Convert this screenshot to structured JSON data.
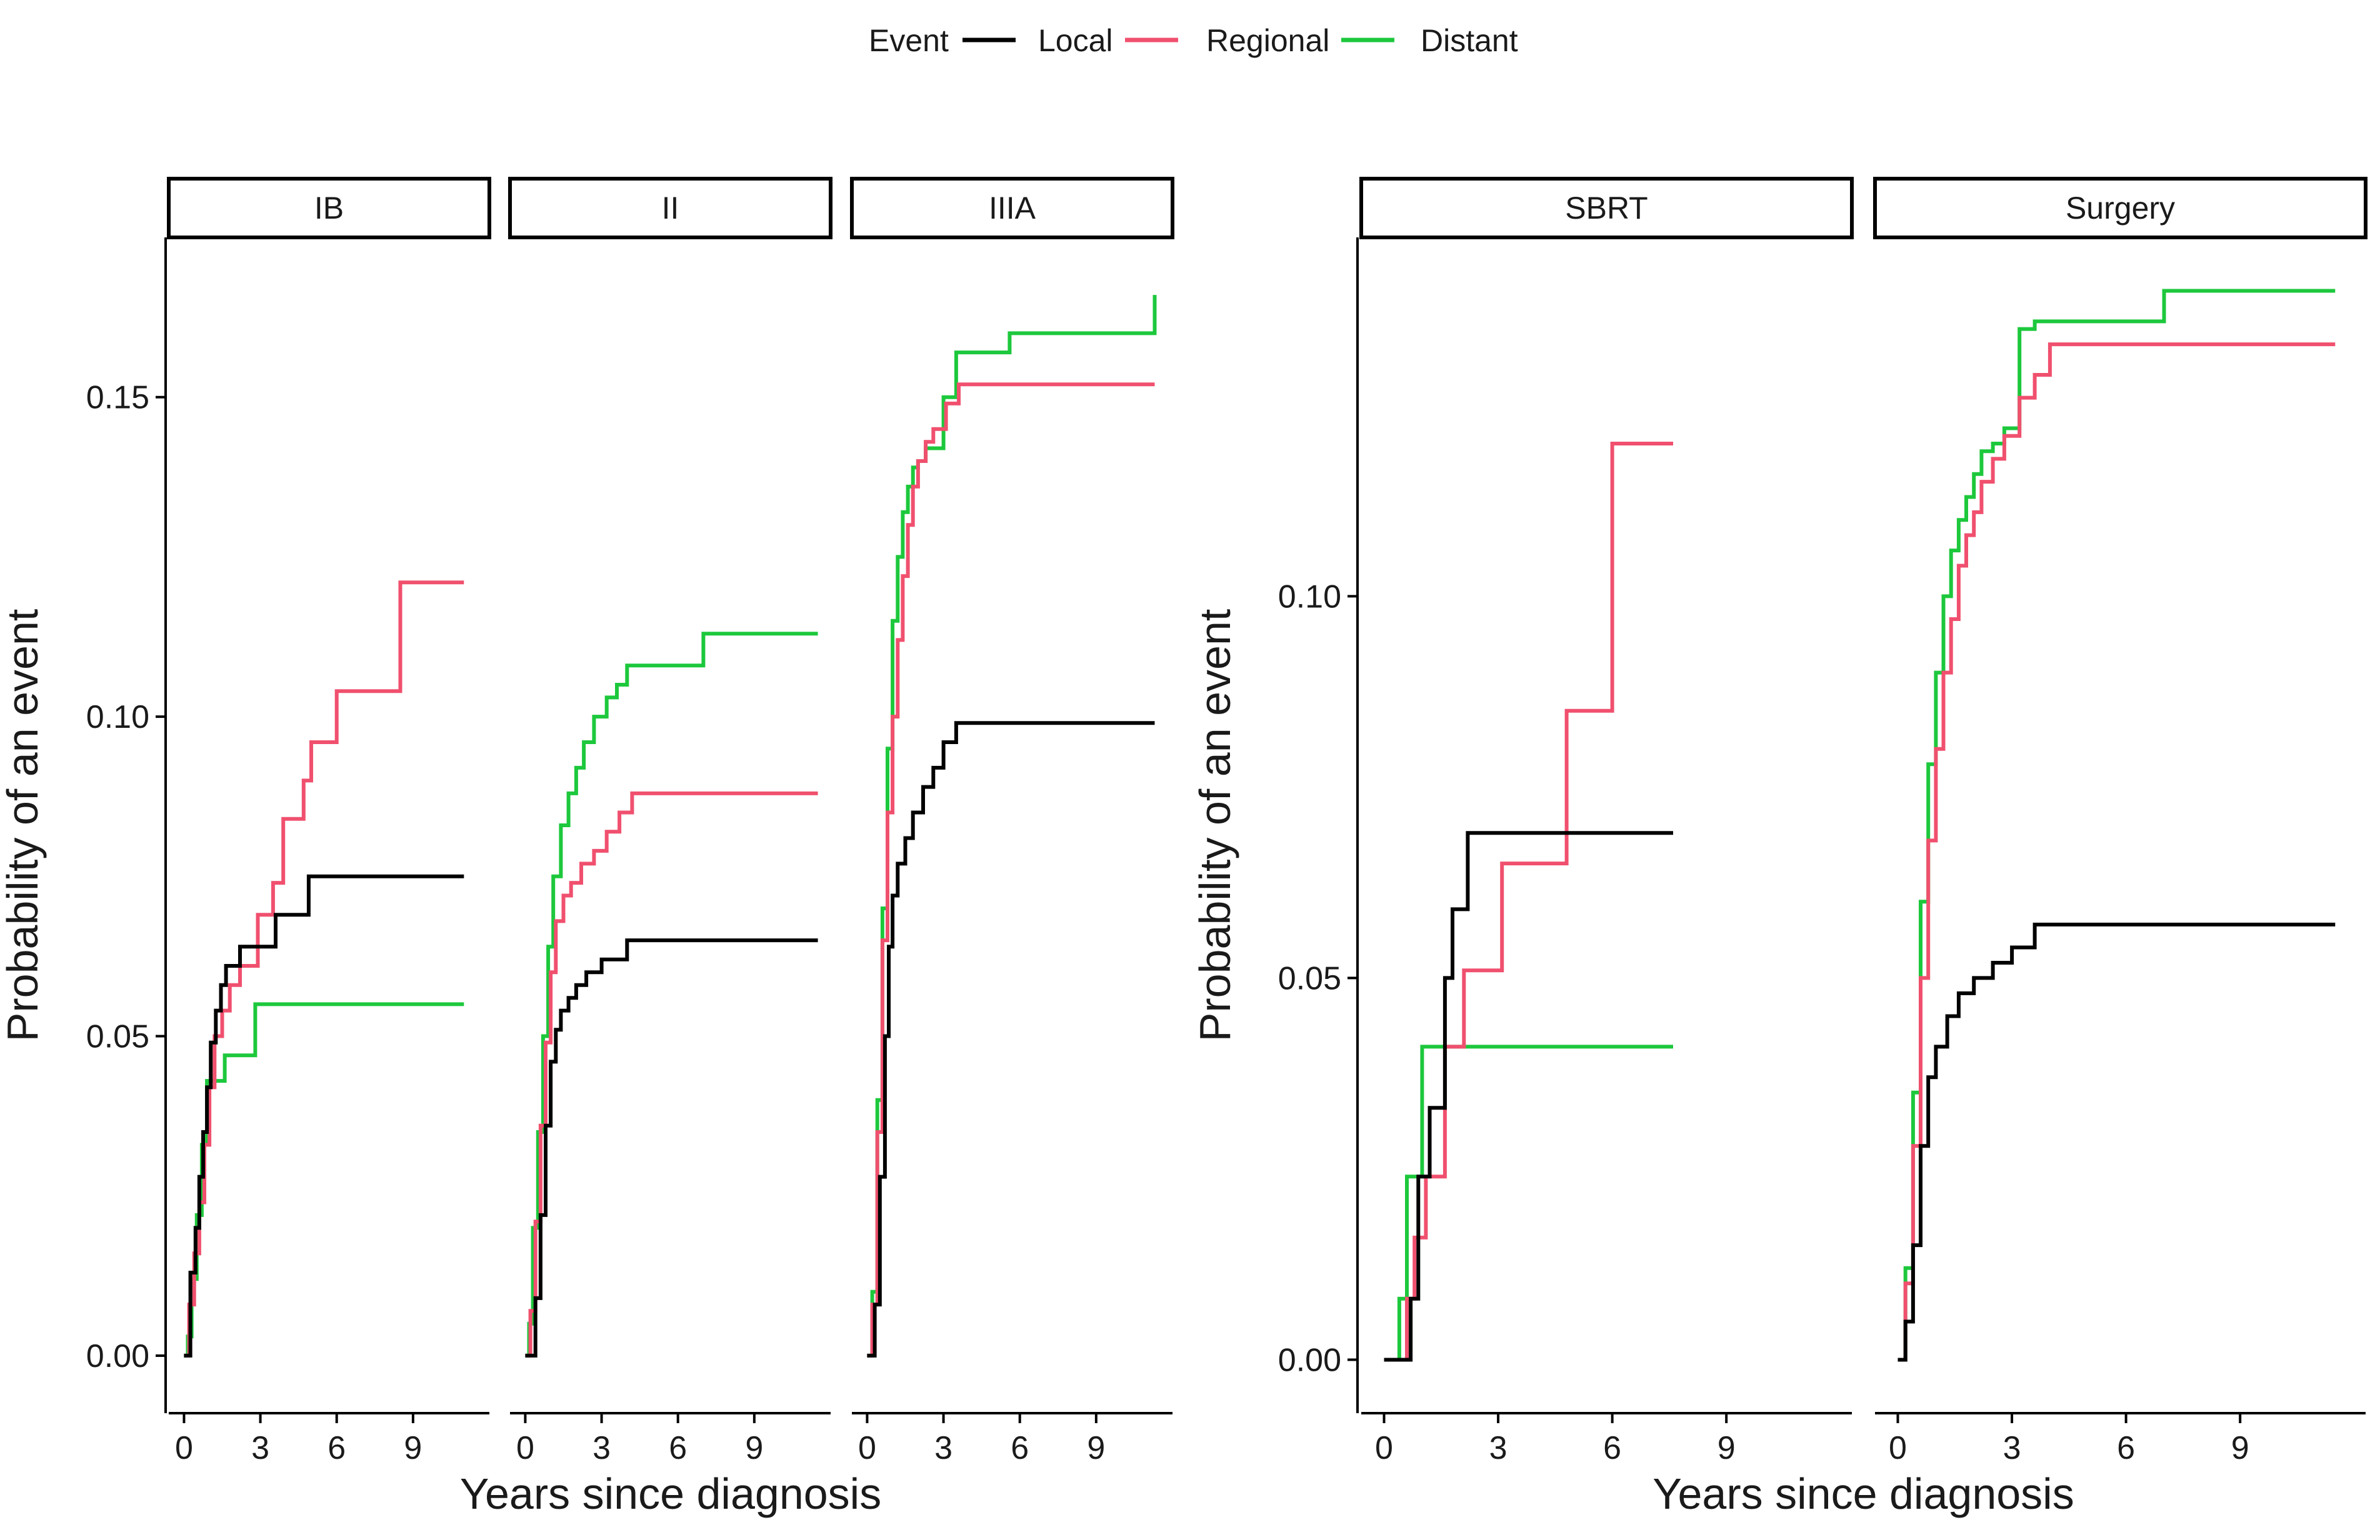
{
  "colors": {
    "Local": "#000000",
    "Regional": "#F0506E",
    "Distant": "#1DC83C",
    "axis": "#000000",
    "background": "#ffffff"
  },
  "legend": {
    "title": "Event",
    "items": [
      "Local",
      "Regional",
      "Distant"
    ]
  },
  "chart_data": [
    {
      "type": "line",
      "step": true,
      "grid": false,
      "legend_position": "top",
      "ylabel": "Probability of an event",
      "xlabel": "Years since diagnosis",
      "xlim": [
        -0.6,
        12.0
      ],
      "ylim": [
        -0.009,
        0.175
      ],
      "xticks": [
        0,
        3,
        6,
        9
      ],
      "yticks": [
        0.0,
        0.05,
        0.1,
        0.15
      ],
      "ytick_labels": [
        "0.00",
        "0.05",
        "0.10",
        "0.15"
      ],
      "panels": [
        {
          "strip": "IB",
          "series": [
            {
              "name": "Local",
              "x": [
                0,
                0.25,
                0.45,
                0.6,
                0.75,
                0.9,
                1.05,
                1.25,
                1.45,
                1.65,
                2.2,
                3.6,
                4.9,
                11
              ],
              "y": [
                0,
                0.013,
                0.02,
                0.028,
                0.035,
                0.042,
                0.049,
                0.054,
                0.058,
                0.061,
                0.064,
                0.069,
                0.075,
                0.075
              ]
            },
            {
              "name": "Regional",
              "x": [
                0,
                0.2,
                0.4,
                0.6,
                0.8,
                1.0,
                1.2,
                1.5,
                1.8,
                2.2,
                2.9,
                3.5,
                3.9,
                4.7,
                5.0,
                6.0,
                8.5,
                11
              ],
              "y": [
                0,
                0.008,
                0.016,
                0.024,
                0.033,
                0.042,
                0.05,
                0.054,
                0.058,
                0.061,
                0.069,
                0.074,
                0.084,
                0.09,
                0.096,
                0.104,
                0.121,
                0.121
              ]
            },
            {
              "name": "Distant",
              "x": [
                0,
                0.15,
                0.3,
                0.5,
                0.7,
                0.9,
                1.6,
                2.8,
                11
              ],
              "y": [
                0,
                0.003,
                0.012,
                0.022,
                0.033,
                0.043,
                0.047,
                0.055,
                0.055
              ]
            }
          ]
        },
        {
          "strip": "II",
          "series": [
            {
              "name": "Local",
              "x": [
                0,
                0.4,
                0.6,
                0.8,
                1.0,
                1.2,
                1.4,
                1.7,
                2.0,
                2.4,
                3.0,
                4.0,
                11.5
              ],
              "y": [
                0,
                0.009,
                0.022,
                0.036,
                0.046,
                0.051,
                0.054,
                0.056,
                0.058,
                0.06,
                0.062,
                0.065,
                0.065
              ]
            },
            {
              "name": "Regional",
              "x": [
                0,
                0.2,
                0.4,
                0.6,
                0.8,
                1.0,
                1.2,
                1.5,
                1.8,
                2.2,
                2.7,
                3.2,
                3.7,
                4.2,
                11.5
              ],
              "y": [
                0,
                0.007,
                0.021,
                0.036,
                0.049,
                0.06,
                0.068,
                0.072,
                0.074,
                0.077,
                0.079,
                0.082,
                0.085,
                0.088,
                0.088
              ]
            },
            {
              "name": "Distant",
              "x": [
                0,
                0.15,
                0.3,
                0.5,
                0.7,
                0.9,
                1.1,
                1.4,
                1.7,
                2.0,
                2.3,
                2.7,
                3.2,
                3.6,
                4.0,
                7.0,
                11.5
              ],
              "y": [
                0,
                0.005,
                0.02,
                0.035,
                0.05,
                0.064,
                0.075,
                0.083,
                0.088,
                0.092,
                0.096,
                0.1,
                0.103,
                0.105,
                0.108,
                0.113,
                0.113
              ]
            }
          ]
        },
        {
          "strip": "IIIA",
          "series": [
            {
              "name": "Local",
              "x": [
                0,
                0.3,
                0.5,
                0.7,
                0.85,
                1.0,
                1.2,
                1.5,
                1.8,
                2.2,
                2.6,
                3.0,
                3.5,
                11.3
              ],
              "y": [
                0,
                0.008,
                0.028,
                0.05,
                0.064,
                0.072,
                0.077,
                0.081,
                0.085,
                0.089,
                0.092,
                0.096,
                0.099,
                0.099
              ]
            },
            {
              "name": "Regional",
              "x": [
                0,
                0.2,
                0.4,
                0.6,
                0.8,
                1.0,
                1.2,
                1.4,
                1.6,
                1.8,
                2.0,
                2.3,
                2.6,
                3.1,
                3.6,
                11.3
              ],
              "y": [
                0,
                0.008,
                0.035,
                0.065,
                0.085,
                0.1,
                0.112,
                0.122,
                0.13,
                0.136,
                0.14,
                0.143,
                0.145,
                0.149,
                0.152,
                0.152
              ]
            },
            {
              "name": "Distant",
              "x": [
                0,
                0.2,
                0.4,
                0.6,
                0.8,
                1.0,
                1.2,
                1.4,
                1.6,
                1.8,
                2.0,
                2.3,
                3.0,
                3.5,
                5.6,
                11.3
              ],
              "y": [
                0,
                0.01,
                0.04,
                0.07,
                0.095,
                0.115,
                0.125,
                0.132,
                0.136,
                0.139,
                0.14,
                0.142,
                0.15,
                0.157,
                0.16,
                0.166
              ]
            }
          ]
        }
      ]
    },
    {
      "type": "line",
      "step": true,
      "grid": false,
      "ylabel": "Probability of an event",
      "xlabel": "Years since diagnosis",
      "xlim": [
        -0.6,
        12.3
      ],
      "ylim": [
        -0.007,
        0.147
      ],
      "xticks": [
        0,
        3,
        6,
        9
      ],
      "yticks": [
        0.0,
        0.05,
        0.1
      ],
      "ytick_labels": [
        "0.00",
        "0.05",
        "0.10"
      ],
      "panels": [
        {
          "strip": "SBRT",
          "series": [
            {
              "name": "Local",
              "x": [
                0,
                0.7,
                0.9,
                1.2,
                1.6,
                1.8,
                2.2,
                7.6
              ],
              "y": [
                0,
                0.008,
                0.024,
                0.033,
                0.05,
                0.059,
                0.069,
                0.069
              ]
            },
            {
              "name": "Regional",
              "x": [
                0,
                0.6,
                0.8,
                1.1,
                1.6,
                2.1,
                3.1,
                4.8,
                6.0,
                7.6
              ],
              "y": [
                0,
                0.008,
                0.016,
                0.024,
                0.041,
                0.051,
                0.065,
                0.085,
                0.12,
                0.12
              ]
            },
            {
              "name": "Distant",
              "x": [
                0,
                0.4,
                0.6,
                1.0,
                7.6
              ],
              "y": [
                0,
                0.008,
                0.024,
                0.041,
                0.041
              ]
            }
          ]
        },
        {
          "strip": "Surgery",
          "series": [
            {
              "name": "Local",
              "x": [
                0,
                0.2,
                0.4,
                0.6,
                0.8,
                1.0,
                1.3,
                1.6,
                2.0,
                2.5,
                3.0,
                3.6,
                11.5
              ],
              "y": [
                0,
                0.005,
                0.015,
                0.028,
                0.037,
                0.041,
                0.045,
                0.048,
                0.05,
                0.052,
                0.054,
                0.057,
                0.057
              ]
            },
            {
              "name": "Regional",
              "x": [
                0,
                0.2,
                0.4,
                0.6,
                0.8,
                1.0,
                1.2,
                1.4,
                1.6,
                1.8,
                2.0,
                2.2,
                2.5,
                2.8,
                3.2,
                3.6,
                4.0,
                11.5
              ],
              "y": [
                0,
                0.01,
                0.028,
                0.05,
                0.068,
                0.08,
                0.09,
                0.097,
                0.104,
                0.108,
                0.111,
                0.115,
                0.118,
                0.121,
                0.126,
                0.129,
                0.133,
                0.133
              ]
            },
            {
              "name": "Distant",
              "x": [
                0,
                0.2,
                0.4,
                0.6,
                0.8,
                1.0,
                1.2,
                1.4,
                1.6,
                1.8,
                2.0,
                2.2,
                2.5,
                2.8,
                3.2,
                3.6,
                7.0,
                11.5
              ],
              "y": [
                0,
                0.012,
                0.035,
                0.06,
                0.078,
                0.09,
                0.1,
                0.106,
                0.11,
                0.113,
                0.116,
                0.119,
                0.12,
                0.122,
                0.135,
                0.136,
                0.14,
                0.14
              ]
            }
          ]
        }
      ]
    }
  ]
}
